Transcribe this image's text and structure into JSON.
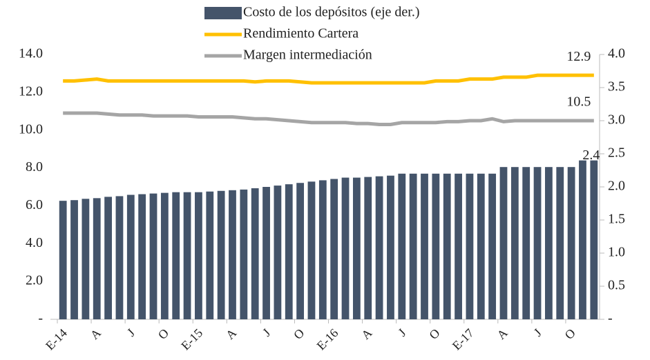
{
  "chart_data": {
    "type": "bar-line",
    "categories": [
      "E-14",
      null,
      null,
      "A",
      null,
      null,
      "J",
      null,
      null,
      "O",
      null,
      null,
      "E-15",
      null,
      null,
      "A",
      null,
      null,
      "J",
      null,
      null,
      "O",
      null,
      null,
      "E-16",
      null,
      null,
      "A",
      null,
      null,
      "J",
      null,
      null,
      "O",
      null,
      null,
      "E-17",
      null,
      null,
      "A",
      null,
      null,
      "J",
      null,
      null,
      "O",
      null,
      null
    ],
    "series": [
      {
        "name": "Costo de los depósitos (eje der.)",
        "type": "bar",
        "axis": "y2",
        "color": "#44546a",
        "data_labels": "last",
        "values": [
          1.79,
          1.8,
          1.82,
          1.83,
          1.85,
          1.86,
          1.88,
          1.89,
          1.9,
          1.91,
          1.92,
          1.92,
          1.92,
          1.93,
          1.94,
          1.95,
          1.96,
          1.98,
          2.0,
          2.02,
          2.04,
          2.06,
          2.08,
          2.1,
          2.12,
          2.14,
          2.14,
          2.15,
          2.16,
          2.17,
          2.2,
          2.2,
          2.2,
          2.2,
          2.2,
          2.2,
          2.2,
          2.2,
          2.2,
          2.3,
          2.3,
          2.3,
          2.3,
          2.3,
          2.3,
          2.3,
          2.4,
          2.4
        ]
      },
      {
        "name": "Rendimiento Cartera",
        "type": "line",
        "color": "#ffc000",
        "data_labels": "last",
        "values": [
          12.6,
          12.6,
          12.65,
          12.7,
          12.6,
          12.6,
          12.6,
          12.6,
          12.6,
          12.6,
          12.6,
          12.6,
          12.6,
          12.6,
          12.6,
          12.6,
          12.6,
          12.55,
          12.6,
          12.6,
          12.6,
          12.55,
          12.5,
          12.5,
          12.5,
          12.5,
          12.5,
          12.5,
          12.5,
          12.5,
          12.5,
          12.5,
          12.5,
          12.6,
          12.6,
          12.6,
          12.7,
          12.7,
          12.7,
          12.8,
          12.8,
          12.8,
          12.9,
          12.9,
          12.9,
          12.9,
          12.9,
          12.9
        ]
      },
      {
        "name": "Margen intermediación",
        "type": "line",
        "color": "#a5a5a5",
        "data_labels": "last",
        "values": [
          10.9,
          10.9,
          10.9,
          10.9,
          10.85,
          10.8,
          10.8,
          10.8,
          10.75,
          10.75,
          10.75,
          10.75,
          10.7,
          10.7,
          10.7,
          10.7,
          10.65,
          10.6,
          10.6,
          10.55,
          10.5,
          10.45,
          10.4,
          10.4,
          10.4,
          10.4,
          10.35,
          10.35,
          10.3,
          10.3,
          10.4,
          10.4,
          10.4,
          10.4,
          10.45,
          10.45,
          10.5,
          10.5,
          10.6,
          10.45,
          10.5,
          10.5,
          10.5,
          10.5,
          10.5,
          10.5,
          10.5,
          10.5
        ]
      }
    ],
    "ylim": [
      0,
      14
    ],
    "yticks": [
      {
        "value": 0,
        "label": "-"
      },
      {
        "value": 2,
        "label": "2.0"
      },
      {
        "value": 4,
        "label": "4.0"
      },
      {
        "value": 6,
        "label": "6.0"
      },
      {
        "value": 8,
        "label": "8.0"
      },
      {
        "value": 10,
        "label": "10.0"
      },
      {
        "value": 12,
        "label": "12.0"
      },
      {
        "value": 14,
        "label": "14.0"
      }
    ],
    "y2lim": [
      0,
      4
    ],
    "y2ticks": [
      {
        "value": 0,
        "label": "-"
      },
      0.5,
      {
        "value": 1,
        "label": "1.0"
      },
      1.5,
      {
        "value": 2,
        "label": "2.0"
      },
      2.5,
      {
        "value": 3,
        "label": "3.0"
      },
      3.5,
      {
        "value": 4,
        "label": "4.0"
      }
    ],
    "grid": false,
    "legend": "top"
  }
}
